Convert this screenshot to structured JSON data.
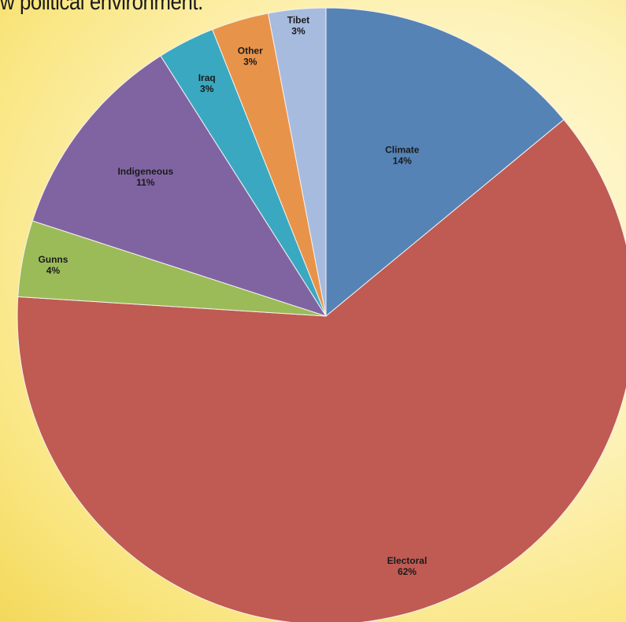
{
  "page": {
    "caption": "w political environment."
  },
  "chart_data": {
    "type": "pie",
    "title": "",
    "slices": [
      {
        "label": "Climate",
        "percent_label": "14%",
        "value": 14,
        "color": "#5583b6"
      },
      {
        "label": "Electoral",
        "percent_label": "62%",
        "value": 62,
        "color": "#bf5b53"
      },
      {
        "label": "Gunns",
        "percent_label": "4%",
        "value": 4,
        "color": "#9bbb59"
      },
      {
        "label": "Indigeneous",
        "percent_label": "11%",
        "value": 11,
        "color": "#8064a2"
      },
      {
        "label": "Iraq",
        "percent_label": "3%",
        "value": 3,
        "color": "#3aa8c1"
      },
      {
        "label": "Other",
        "percent_label": "3%",
        "value": 3,
        "color": "#e8934a"
      },
      {
        "label": "Tibet",
        "percent_label": "3%",
        "value": 3,
        "color": "#a7bbde"
      }
    ],
    "start_angle": "12 o'clock",
    "direction": "clockwise",
    "legend": "none"
  }
}
